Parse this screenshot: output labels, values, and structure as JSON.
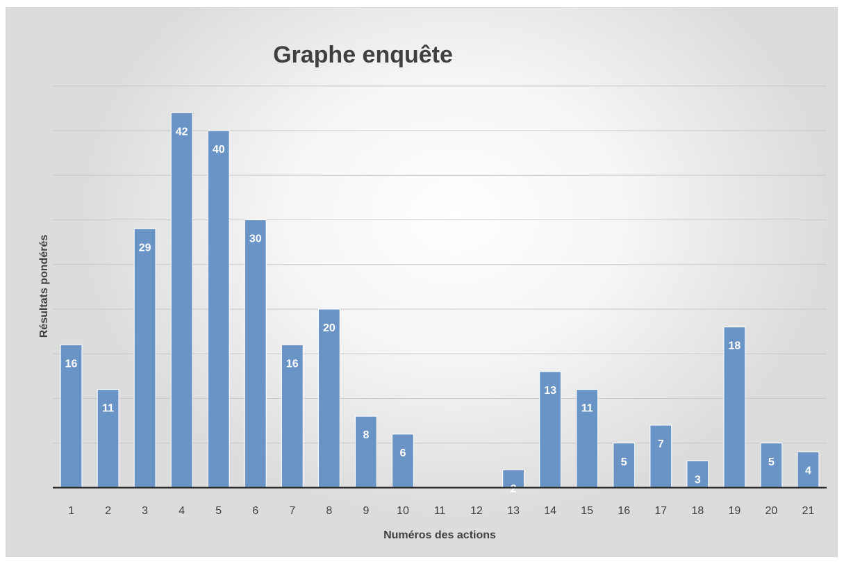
{
  "chart_data": {
    "type": "bar",
    "title": "Graphe enquête",
    "xlabel": "Numéros des actions",
    "ylabel": "Résultats pondérés",
    "categories": [
      "1",
      "2",
      "3",
      "4",
      "5",
      "6",
      "7",
      "8",
      "9",
      "10",
      "11",
      "12",
      "13",
      "14",
      "15",
      "16",
      "17",
      "18",
      "19",
      "20",
      "21"
    ],
    "values": [
      16,
      11,
      29,
      42,
      40,
      30,
      16,
      20,
      8,
      6,
      0,
      0,
      2,
      13,
      11,
      5,
      7,
      3,
      18,
      5,
      4
    ],
    "ylim": [
      0,
      45
    ],
    "grid": true,
    "legend": "none",
    "colors": {
      "bar": "#6a94c6",
      "bar_edge": "#ffffff",
      "data_label": "#ffffff",
      "gridline": "#c8c8c8",
      "axis_line": "#2b2b2b",
      "text": "#404040"
    }
  }
}
